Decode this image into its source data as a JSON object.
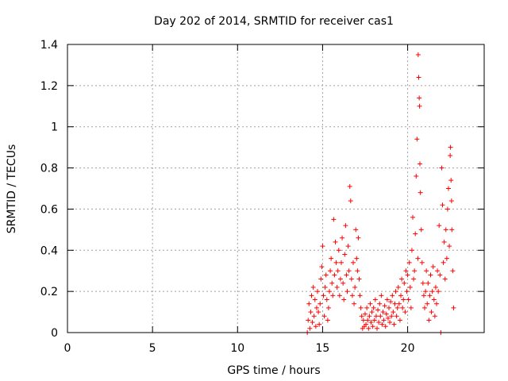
{
  "colors": {
    "background": "#ffffff",
    "axis": "#000000",
    "grid": "#a0a0a0",
    "series": "#ff0000"
  },
  "chart_data": {
    "type": "scatter",
    "title": "Day 202 of 2014, SRMTID for receiver cas1",
    "xlabel": "GPS time / hours",
    "ylabel": "SRMTID / TECUs",
    "xlim": [
      0,
      24.5
    ],
    "ylim": [
      0,
      1.4
    ],
    "grid": true,
    "x_ticks": [
      {
        "value": 0,
        "label": "0"
      },
      {
        "value": 5,
        "label": "5"
      },
      {
        "value": 10,
        "label": "10"
      },
      {
        "value": 15,
        "label": "15"
      },
      {
        "value": 20,
        "label": "20"
      }
    ],
    "y_ticks": [
      {
        "value": 0,
        "label": "0"
      },
      {
        "value": 0.2,
        "label": "0.2"
      },
      {
        "value": 0.4,
        "label": "0.4"
      },
      {
        "value": 0.6,
        "label": "0.6"
      },
      {
        "value": 0.8,
        "label": "0.8"
      },
      {
        "value": 1.0,
        "label": "1"
      },
      {
        "value": 1.2,
        "label": "1.2"
      },
      {
        "value": 1.4,
        "label": "1.4"
      }
    ],
    "series": [
      {
        "name": "SRMTID",
        "marker": "plus",
        "color": "#ff0000",
        "points": [
          [
            14.1,
            0.0
          ],
          [
            14.15,
            0.06
          ],
          [
            14.2,
            0.14
          ],
          [
            14.25,
            0.02
          ],
          [
            14.3,
            0.1
          ],
          [
            14.35,
            0.18
          ],
          [
            14.4,
            0.05
          ],
          [
            14.45,
            0.22
          ],
          [
            14.5,
            0.08
          ],
          [
            14.55,
            0.16
          ],
          [
            14.6,
            0.03
          ],
          [
            14.65,
            0.12
          ],
          [
            14.7,
            0.2
          ],
          [
            14.75,
            0.1
          ],
          [
            14.8,
            0.04
          ],
          [
            14.85,
            0.14
          ],
          [
            14.9,
            0.26
          ],
          [
            14.95,
            0.32
          ],
          [
            15.0,
            0.42
          ],
          [
            15.05,
            0.18
          ],
          [
            15.1,
            0.08
          ],
          [
            15.15,
            0.22
          ],
          [
            15.2,
            0.28
          ],
          [
            15.25,
            0.16
          ],
          [
            15.3,
            0.06
          ],
          [
            15.35,
            0.12
          ],
          [
            15.4,
            0.2
          ],
          [
            15.45,
            0.3
          ],
          [
            15.5,
            0.36
          ],
          [
            15.55,
            0.24
          ],
          [
            15.6,
            0.18
          ],
          [
            15.65,
            0.55
          ],
          [
            15.7,
            0.28
          ],
          [
            15.75,
            0.44
          ],
          [
            15.8,
            0.34
          ],
          [
            15.85,
            0.22
          ],
          [
            15.9,
            0.3
          ],
          [
            15.95,
            0.4
          ],
          [
            16.0,
            0.18
          ],
          [
            16.05,
            0.26
          ],
          [
            16.1,
            0.34
          ],
          [
            16.15,
            0.46
          ],
          [
            16.2,
            0.24
          ],
          [
            16.25,
            0.16
          ],
          [
            16.3,
            0.38
          ],
          [
            16.35,
            0.52
          ],
          [
            16.4,
            0.28
          ],
          [
            16.45,
            0.2
          ],
          [
            16.5,
            0.42
          ],
          [
            16.55,
            0.3
          ],
          [
            16.6,
            0.71
          ],
          [
            16.65,
            0.64
          ],
          [
            16.7,
            0.26
          ],
          [
            16.75,
            0.18
          ],
          [
            16.8,
            0.34
          ],
          [
            16.85,
            0.14
          ],
          [
            16.9,
            0.22
          ],
          [
            16.95,
            0.5
          ],
          [
            17.0,
            0.36
          ],
          [
            17.05,
            0.3
          ],
          [
            17.1,
            0.46
          ],
          [
            17.15,
            0.26
          ],
          [
            17.2,
            0.18
          ],
          [
            17.25,
            0.12
          ],
          [
            17.3,
            0.08
          ],
          [
            17.35,
            0.02
          ],
          [
            17.4,
            0.06
          ],
          [
            17.45,
            0.03
          ],
          [
            17.5,
            0.09
          ],
          [
            17.55,
            0.04
          ],
          [
            17.6,
            0.12
          ],
          [
            17.65,
            0.06
          ],
          [
            17.7,
            0.02
          ],
          [
            17.75,
            0.08
          ],
          [
            17.8,
            0.14
          ],
          [
            17.85,
            0.05
          ],
          [
            17.9,
            0.1
          ],
          [
            17.95,
            0.03
          ],
          [
            18.0,
            0.12
          ],
          [
            18.05,
            0.06
          ],
          [
            18.1,
            0.16
          ],
          [
            18.15,
            0.08
          ],
          [
            18.2,
            0.02
          ],
          [
            18.25,
            0.11
          ],
          [
            18.3,
            0.05
          ],
          [
            18.35,
            0.14
          ],
          [
            18.4,
            0.08
          ],
          [
            18.45,
            0.18
          ],
          [
            18.5,
            0.04
          ],
          [
            18.55,
            0.1
          ],
          [
            18.6,
            0.06
          ],
          [
            18.65,
            0.13
          ],
          [
            18.7,
            0.03
          ],
          [
            18.75,
            0.09
          ],
          [
            18.8,
            0.16
          ],
          [
            18.85,
            0.07
          ],
          [
            18.9,
            0.12
          ],
          [
            18.95,
            0.05
          ],
          [
            19.0,
            0.15
          ],
          [
            19.05,
            0.08
          ],
          [
            19.1,
            0.18
          ],
          [
            19.15,
            0.1
          ],
          [
            19.2,
            0.04
          ],
          [
            19.25,
            0.14
          ],
          [
            19.3,
            0.2
          ],
          [
            19.35,
            0.08
          ],
          [
            19.4,
            0.12
          ],
          [
            19.45,
            0.22
          ],
          [
            19.5,
            0.14
          ],
          [
            19.55,
            0.06
          ],
          [
            19.6,
            0.18
          ],
          [
            19.65,
            0.26
          ],
          [
            19.7,
            0.12
          ],
          [
            19.75,
            0.16
          ],
          [
            19.8,
            0.24
          ],
          [
            19.85,
            0.1
          ],
          [
            19.9,
            0.3
          ],
          [
            19.95,
            0.2
          ],
          [
            20.0,
            0.28
          ],
          [
            20.05,
            0.16
          ],
          [
            20.1,
            0.34
          ],
          [
            20.15,
            0.22
          ],
          [
            20.2,
            0.12
          ],
          [
            20.25,
            0.4
          ],
          [
            20.3,
            0.56
          ],
          [
            20.35,
            0.26
          ],
          [
            20.4,
            0.3
          ],
          [
            20.45,
            0.48
          ],
          [
            20.5,
            0.76
          ],
          [
            20.55,
            0.94
          ],
          [
            20.6,
            0.36
          ],
          [
            20.62,
            1.35
          ],
          [
            20.65,
            1.24
          ],
          [
            20.68,
            1.14
          ],
          [
            20.7,
            1.1
          ],
          [
            20.72,
            0.82
          ],
          [
            20.75,
            0.68
          ],
          [
            20.8,
            0.5
          ],
          [
            20.85,
            0.34
          ],
          [
            20.9,
            0.24
          ],
          [
            20.95,
            0.18
          ],
          [
            21.0,
            0.12
          ],
          [
            21.05,
            0.2
          ],
          [
            21.1,
            0.3
          ],
          [
            21.15,
            0.14
          ],
          [
            21.2,
            0.24
          ],
          [
            21.25,
            0.06
          ],
          [
            21.3,
            0.18
          ],
          [
            21.35,
            0.28
          ],
          [
            21.4,
            0.1
          ],
          [
            21.45,
            0.2
          ],
          [
            21.5,
            0.32
          ],
          [
            21.55,
            0.16
          ],
          [
            21.6,
            0.08
          ],
          [
            21.65,
            0.22
          ],
          [
            21.7,
            0.14
          ],
          [
            21.75,
            0.3
          ],
          [
            21.8,
            0.2
          ],
          [
            21.85,
            0.52
          ],
          [
            21.9,
            0.28
          ],
          [
            21.95,
            0.0
          ],
          [
            22.0,
            0.8
          ],
          [
            22.05,
            0.62
          ],
          [
            22.1,
            0.34
          ],
          [
            22.15,
            0.44
          ],
          [
            22.2,
            0.26
          ],
          [
            22.25,
            0.5
          ],
          [
            22.3,
            0.36
          ],
          [
            22.35,
            0.6
          ],
          [
            22.4,
            0.7
          ],
          [
            22.45,
            0.42
          ],
          [
            22.5,
            0.86
          ],
          [
            22.52,
            0.9
          ],
          [
            22.55,
            0.74
          ],
          [
            22.58,
            0.64
          ],
          [
            22.6,
            0.5
          ],
          [
            22.65,
            0.3
          ],
          [
            22.7,
            0.12
          ]
        ]
      }
    ]
  }
}
